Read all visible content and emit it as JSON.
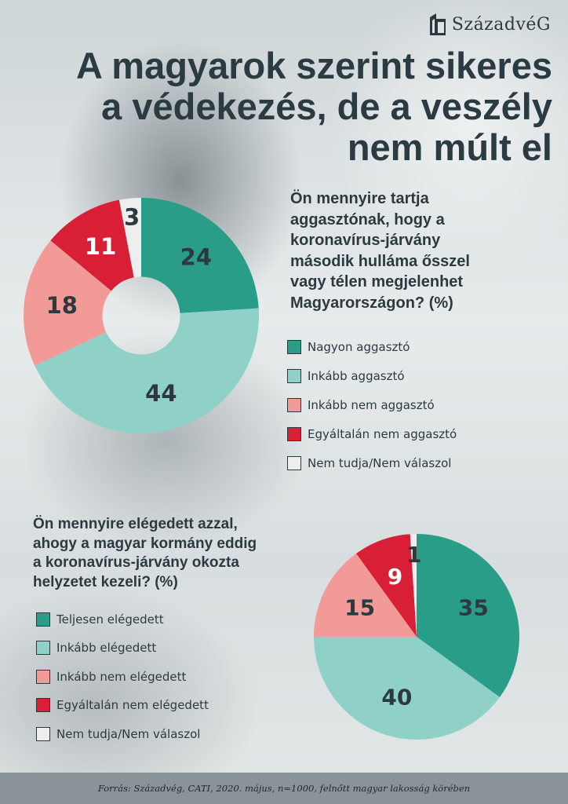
{
  "brand": {
    "name": "SzázadvéG"
  },
  "title": "A magyarok szerint sikeres\na védekezés, de a veszély\nnem múlt el",
  "colors": {
    "c1": "#2a9d89",
    "c2": "#8fd1c6",
    "c3": "#f19a97",
    "c4": "#d81f35",
    "c5": "#eeeeee"
  },
  "chart_data": [
    {
      "type": "pie",
      "variant": "donut",
      "question": "Ön mennyire tartja\naggasztónak, hogy a\nkoronavírus-járvány\nmásodik hulláma ősszel\nvagy télen megjelenhet\nMagyarországon? (%)",
      "categories": [
        "Nagyon aggasztó",
        "Inkább aggasztó",
        "Inkább nem aggasztó",
        "Egyáltalán nem aggasztó",
        "Nem tudja/Nem válaszol"
      ],
      "values": [
        24,
        44,
        18,
        11,
        3
      ],
      "colors": [
        "#2a9d89",
        "#8fd1c6",
        "#f19a97",
        "#d81f35",
        "#eeeeee"
      ]
    },
    {
      "type": "pie",
      "question": "Ön mennyire elégedett azzal,\nahogy a magyar kormány eddig\na koronavírus-járvány okozta\nhelyzetet kezeli? (%)",
      "categories": [
        "Teljesen elégedett",
        "Inkább elégedett",
        "Inkább nem elégedett",
        "Egyáltalán nem elégedett",
        "Nem tudja/Nem válaszol"
      ],
      "values": [
        35,
        40,
        15,
        9,
        1
      ],
      "colors": [
        "#2a9d89",
        "#8fd1c6",
        "#f19a97",
        "#d81f35",
        "#eeeeee"
      ]
    }
  ],
  "footer": "Forrás: Századvég, CATI, 2020. május, n=1000, felnőtt magyar lakosság körében"
}
